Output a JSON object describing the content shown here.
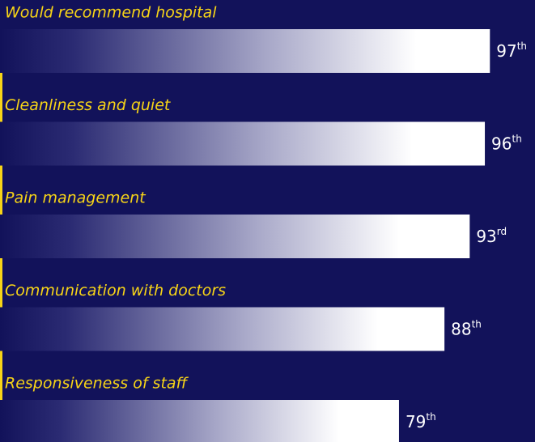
{
  "chart_data": {
    "type": "bar",
    "orientation": "horizontal",
    "categories": [
      "Would recommend hospital",
      "Cleanliness and quiet",
      "Pain management",
      "Communication with doctors",
      "Responsiveness of staff"
    ],
    "values": [
      97,
      96,
      93,
      88,
      79
    ],
    "value_labels": [
      "97th",
      "96th",
      "93rd",
      "88th",
      "79th"
    ],
    "color": "#ffffff"
  }
}
